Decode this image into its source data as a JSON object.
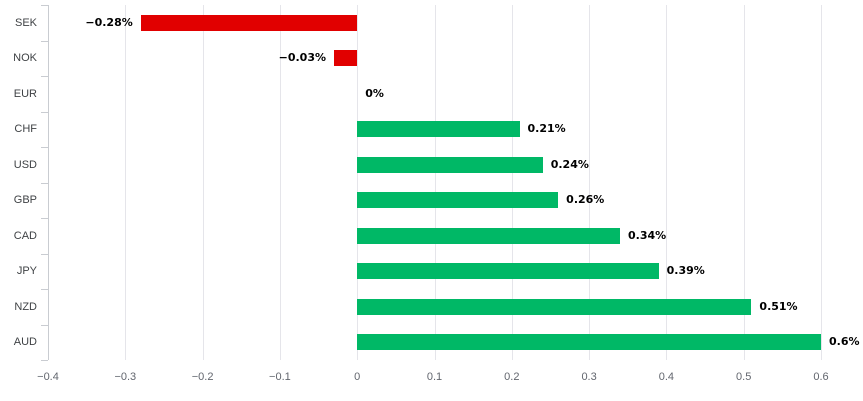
{
  "chart_data": {
    "type": "bar",
    "orientation": "horizontal",
    "title": "",
    "xlabel": "",
    "ylabel": "",
    "categories": [
      "SEK",
      "NOK",
      "EUR",
      "CHF",
      "USD",
      "GBP",
      "CAD",
      "JPY",
      "NZD",
      "AUD"
    ],
    "values": [
      -0.28,
      -0.03,
      0,
      0.21,
      0.24,
      0.26,
      0.34,
      0.39,
      0.51,
      0.6
    ],
    "value_labels": [
      "−0.28%",
      "−0.03%",
      "0%",
      "0.21%",
      "0.24%",
      "0.26%",
      "0.34%",
      "0.39%",
      "0.51%",
      "0.6%"
    ],
    "x_tick_values": [
      -0.4,
      -0.3,
      -0.2,
      -0.1,
      0,
      0.1,
      0.2,
      0.3,
      0.4,
      0.5,
      0.6
    ],
    "x_tick_labels": [
      "−0.4",
      "−0.3",
      "−0.2",
      "−0.1",
      "0",
      "0.1",
      "0.2",
      "0.3",
      "0.4",
      "0.5",
      "0.6"
    ],
    "xlim": [
      -0.4,
      0.6
    ],
    "grid": true,
    "legend": false,
    "colors": {
      "positive": "#00b866",
      "negative": "#e10000",
      "gridline": "#e5e5ea",
      "axis": "#c9ccd1",
      "category_text": "#3f4245",
      "tick_text": "#62666e",
      "value_text": "#000000",
      "background": "#ffffff"
    }
  }
}
